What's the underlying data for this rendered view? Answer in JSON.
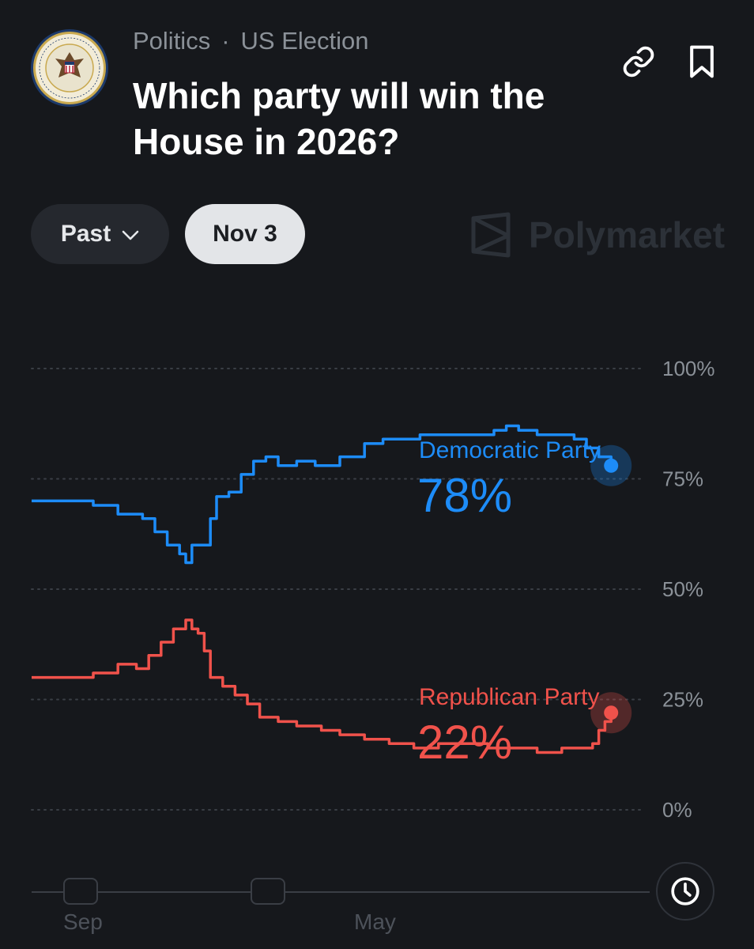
{
  "header": {
    "breadcrumb": [
      "Politics",
      "US Election"
    ],
    "breadcrumb_separator": "·",
    "title": "Which party will win the House in 2026?",
    "seal_text": "U.S. HOUSE OF REPRESENTATIVES"
  },
  "controls": {
    "past_label": "Past",
    "date_label": "Nov 3",
    "brand": "Polymarket"
  },
  "colors": {
    "democratic": "#1d8cf8",
    "republican": "#f0524b",
    "background": "#16181c"
  },
  "chart_data": {
    "type": "line",
    "y_ticks": [
      "100%",
      "75%",
      "50%",
      "25%",
      "0%"
    ],
    "ylim": [
      0,
      100
    ],
    "grid": true,
    "series": [
      {
        "name": "Democratic Party",
        "value_label": "78%",
        "color": "#1d8cf8",
        "points": [
          [
            0,
            70
          ],
          [
            5,
            70
          ],
          [
            10,
            69
          ],
          [
            14,
            67
          ],
          [
            18,
            66
          ],
          [
            20,
            63
          ],
          [
            22,
            60
          ],
          [
            24,
            58
          ],
          [
            25,
            56
          ],
          [
            26,
            60
          ],
          [
            28,
            60
          ],
          [
            29,
            66
          ],
          [
            30,
            71
          ],
          [
            32,
            72
          ],
          [
            34,
            76
          ],
          [
            36,
            79
          ],
          [
            38,
            80
          ],
          [
            40,
            78
          ],
          [
            43,
            79
          ],
          [
            46,
            78
          ],
          [
            50,
            80
          ],
          [
            54,
            83
          ],
          [
            57,
            84
          ],
          [
            60,
            84
          ],
          [
            63,
            85
          ],
          [
            67,
            85
          ],
          [
            70,
            85
          ],
          [
            73,
            85
          ],
          [
            75,
            86
          ],
          [
            77,
            87
          ],
          [
            79,
            86
          ],
          [
            82,
            85
          ],
          [
            85,
            85
          ],
          [
            88,
            84
          ],
          [
            90,
            82
          ],
          [
            92,
            80
          ],
          [
            94,
            78
          ]
        ]
      },
      {
        "name": "Republican Party",
        "value_label": "22%",
        "color": "#f0524b",
        "points": [
          [
            0,
            30
          ],
          [
            5,
            30
          ],
          [
            10,
            31
          ],
          [
            14,
            33
          ],
          [
            17,
            32
          ],
          [
            19,
            35
          ],
          [
            21,
            38
          ],
          [
            23,
            41
          ],
          [
            25,
            43
          ],
          [
            26,
            41
          ],
          [
            27,
            40
          ],
          [
            28,
            36
          ],
          [
            29,
            30
          ],
          [
            31,
            28
          ],
          [
            33,
            26
          ],
          [
            35,
            24
          ],
          [
            37,
            21
          ],
          [
            40,
            20
          ],
          [
            43,
            19
          ],
          [
            47,
            18
          ],
          [
            50,
            17
          ],
          [
            54,
            16
          ],
          [
            58,
            15
          ],
          [
            62,
            14
          ],
          [
            66,
            15
          ],
          [
            70,
            15
          ],
          [
            74,
            14
          ],
          [
            78,
            14
          ],
          [
            82,
            13
          ],
          [
            86,
            14
          ],
          [
            89,
            14
          ],
          [
            91,
            15
          ],
          [
            92,
            18
          ],
          [
            93,
            20
          ],
          [
            94,
            22
          ]
        ]
      }
    ]
  },
  "timeline": {
    "labels": [
      "Sep",
      "May"
    ]
  }
}
